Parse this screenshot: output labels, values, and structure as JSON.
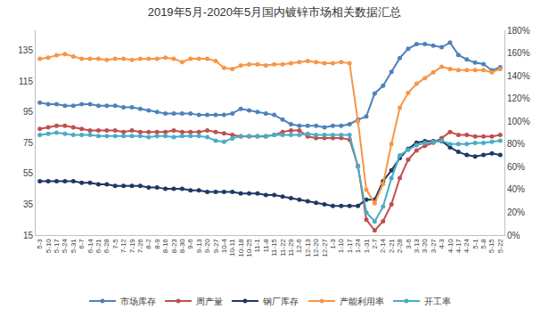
{
  "chart_data": {
    "type": "line",
    "title": "2019年5月-2020年5月国内镀锌市场相关数据汇总",
    "categories": [
      "5-3",
      "5-10",
      "5-17",
      "5-24",
      "5-31",
      "6-7",
      "6-14",
      "6-21",
      "6-28",
      "7-5",
      "7-12",
      "7-19",
      "7-26",
      "8-2",
      "8-9",
      "8-16",
      "8-23",
      "8-30",
      "9-6",
      "9-13",
      "9-20",
      "9-27",
      "10-4",
      "10-11",
      "10-18",
      "10-25",
      "11-1",
      "11-8",
      "11-15",
      "11-22",
      "11-29",
      "12-6",
      "12-13",
      "12-20",
      "12-27",
      "1-3",
      "1-10",
      "1-17",
      "1-24",
      "1-31",
      "2-7",
      "2-14",
      "2-21",
      "2-28",
      "3-6",
      "3-13",
      "3-20",
      "3-27",
      "4-3",
      "4-10",
      "4-17",
      "4-24",
      "5-1",
      "5-8",
      "5-15",
      "5-22"
    ],
    "ylim": [
      15,
      148
    ],
    "yticks": [
      15,
      35,
      55,
      75,
      95,
      115,
      135
    ],
    "y2lim": [
      0,
      180
    ],
    "y2ticks": [
      {
        "value": 0,
        "label": "0%"
      },
      {
        "value": 20,
        "label": "20%"
      },
      {
        "value": 40,
        "label": "40%"
      },
      {
        "value": 60,
        "label": "60%"
      },
      {
        "value": 80,
        "label": "80%"
      },
      {
        "value": 100,
        "label": "100%"
      },
      {
        "value": 120,
        "label": "120%"
      },
      {
        "value": 140,
        "label": "140%"
      },
      {
        "value": 160,
        "label": "160%"
      },
      {
        "value": 180,
        "label": "180%"
      }
    ],
    "grid": false,
    "legend": "bottom",
    "marker": "circle",
    "line_style": "solid",
    "series": [
      {
        "name": "市场库存",
        "color": "#4F81BD",
        "values": [
          101,
          100,
          100,
          99,
          99,
          100,
          100,
          99,
          99,
          99,
          98,
          98,
          97,
          96,
          95,
          94,
          94,
          94,
          94,
          93,
          93,
          93,
          93,
          94,
          97,
          96,
          95,
          94,
          93,
          90,
          87,
          86,
          86,
          86,
          85,
          86,
          86,
          87,
          90,
          92,
          107,
          112,
          121,
          130,
          136,
          139,
          139,
          138,
          137,
          140,
          132,
          129,
          127,
          126,
          122,
          124
        ]
      },
      {
        "name": "周产量",
        "color": "#C0504D",
        "values": [
          84,
          85,
          86,
          86,
          85,
          84,
          83,
          83,
          83,
          83,
          82,
          83,
          82,
          82,
          82,
          82,
          83,
          82,
          82,
          82,
          83,
          82,
          81,
          80,
          79,
          79,
          79,
          79,
          80,
          82,
          83,
          83,
          79,
          78,
          78,
          78,
          78,
          77,
          60,
          25,
          18,
          24,
          35,
          52,
          64,
          70,
          73,
          75,
          78,
          82,
          80,
          80,
          79,
          79,
          79,
          80
        ]
      },
      {
        "name": "钢厂库存",
        "color": "#1F3864",
        "values": [
          50,
          50,
          50,
          50,
          50,
          49,
          49,
          48,
          48,
          47,
          47,
          47,
          47,
          46,
          46,
          45,
          45,
          45,
          44,
          44,
          43,
          43,
          43,
          43,
          42,
          42,
          42,
          41,
          41,
          40,
          39,
          38,
          37,
          36,
          35,
          34,
          34,
          34,
          34,
          38,
          38,
          50,
          57,
          65,
          71,
          75,
          76,
          76,
          76,
          72,
          69,
          67,
          66,
          67,
          68,
          67
        ]
      },
      {
        "name": "产能利用率",
        "color": "#F79646",
        "axis": "y2",
        "values": [
          155,
          156,
          158,
          159,
          157,
          155,
          155,
          155,
          154,
          155,
          155,
          154,
          155,
          155,
          155,
          156,
          155,
          152,
          155,
          155,
          155,
          153,
          147,
          146,
          149,
          150,
          150,
          149,
          150,
          150,
          151,
          152,
          153,
          152,
          151,
          151,
          152,
          151,
          100,
          40,
          28,
          45,
          80,
          112,
          125,
          133,
          138,
          143,
          148,
          146,
          145,
          145,
          145,
          145,
          143,
          146
        ]
      },
      {
        "name": "开工率",
        "color": "#4BACC6",
        "axis": "y2",
        "values": [
          88,
          89,
          90,
          89,
          88,
          88,
          88,
          87,
          87,
          87,
          87,
          87,
          87,
          86,
          87,
          87,
          86,
          87,
          87,
          87,
          86,
          83,
          82,
          85,
          87,
          87,
          87,
          87,
          88,
          88,
          88,
          88,
          89,
          88,
          88,
          88,
          88,
          88,
          60,
          20,
          12,
          25,
          50,
          70,
          75,
          79,
          81,
          82,
          83,
          80,
          80,
          80,
          81,
          81,
          82,
          83
        ]
      }
    ]
  }
}
